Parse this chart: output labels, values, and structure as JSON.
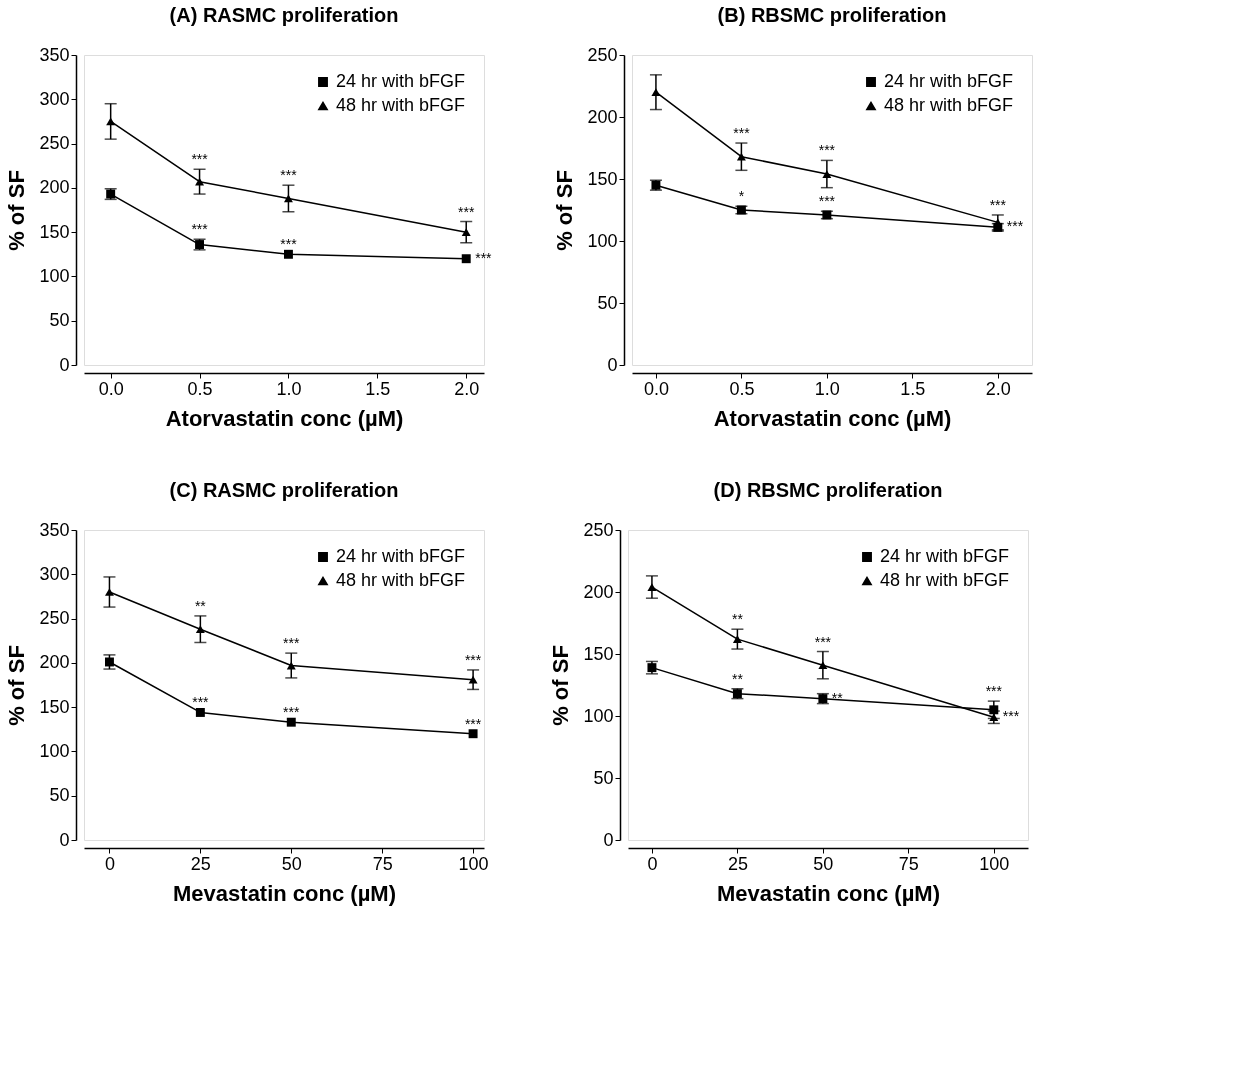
{
  "chart_data": [
    {
      "type": "line",
      "title": "(A) RASMC proliferation",
      "xlabel": "Atorvastatin conc (µM)",
      "ylabel": "% of SF",
      "x": [
        0,
        0.5,
        1,
        2
      ],
      "xlim": [
        -0.15,
        2.1
      ],
      "ylim": [
        0,
        350
      ],
      "xticks": [
        {
          "value": 0,
          "label": "0.0"
        },
        {
          "value": 0.5,
          "label": "0.5"
        },
        {
          "value": 1,
          "label": "1.0"
        },
        {
          "value": 1.5,
          "label": "1.5"
        },
        {
          "value": 2,
          "label": "2.0"
        }
      ],
      "yticks": [
        0,
        50,
        100,
        150,
        200,
        250,
        300,
        350
      ],
      "grid": false,
      "legend": "top right",
      "series": [
        {
          "name": "24 hr with bFGF",
          "color": "#000000",
          "marker": "square",
          "values": [
            193,
            136,
            125,
            120
          ],
          "errors": [
            6,
            6,
            null,
            null
          ]
        },
        {
          "name": "48 hr with bFGF",
          "color": "#000000",
          "marker": "triangle",
          "values": [
            275,
            207,
            188,
            150
          ],
          "errors": [
            20,
            14,
            15,
            12
          ]
        }
      ],
      "annotations": [
        {
          "text": "***",
          "x": 0.5,
          "y": 207
        },
        {
          "text": "***",
          "x": 0.5,
          "y": 136
        },
        {
          "text": "***",
          "x": 1,
          "y": 188
        },
        {
          "text": "***",
          "x": 1,
          "y": 125
        },
        {
          "text": "***",
          "x": 2,
          "y": 150
        },
        {
          "text": "***",
          "x": 2,
          "y": 120
        }
      ]
    },
    {
      "type": "line",
      "title": "(B) RBSMC proliferation",
      "xlabel": "Atorvastatin conc (µM)",
      "ylabel": "% of SF",
      "x": [
        0,
        0.5,
        1,
        2
      ],
      "xlim": [
        -0.14,
        2.2
      ],
      "ylim": [
        0,
        250
      ],
      "xticks": [
        {
          "value": 0,
          "label": "0.0"
        },
        {
          "value": 0.5,
          "label": "0.5"
        },
        {
          "value": 1,
          "label": "1.0"
        },
        {
          "value": 1.5,
          "label": "1.5"
        },
        {
          "value": 2,
          "label": "2.0"
        }
      ],
      "yticks": [
        0,
        50,
        100,
        150,
        200,
        250
      ],
      "grid": false,
      "legend": "top right",
      "series": [
        {
          "name": "24 hr with bFGF",
          "color": "#000000",
          "marker": "square",
          "values": [
            145,
            125,
            121,
            111
          ],
          "errors": [
            4,
            3,
            3,
            3
          ]
        },
        {
          "name": "48 hr with bFGF",
          "color": "#000000",
          "marker": "triangle",
          "values": [
            220,
            168,
            154,
            115
          ],
          "errors": [
            14,
            11,
            11,
            6
          ]
        }
      ],
      "annotations": [
        {
          "text": "***",
          "x": 0.5,
          "y": 168
        },
        {
          "text": "*",
          "x": 0.5,
          "y": 125
        },
        {
          "text": "***",
          "x": 1,
          "y": 154
        },
        {
          "text": "***",
          "x": 1,
          "y": 121
        },
        {
          "text": "***",
          "x": 2,
          "y": 115
        },
        {
          "text": "***",
          "x": 2,
          "y": 111
        }
      ]
    },
    {
      "type": "line",
      "title": "(C) RASMC proliferation",
      "xlabel": "Mevastatin conc (µM)",
      "ylabel": "% of SF",
      "x": [
        0,
        25,
        50,
        100
      ],
      "xlim": [
        -7,
        103
      ],
      "ylim": [
        0,
        350
      ],
      "xticks": [
        0,
        25,
        50,
        75,
        100
      ],
      "yticks": [
        0,
        50,
        100,
        150,
        200,
        250,
        300,
        350
      ],
      "grid": false,
      "legend": "top right",
      "series": [
        {
          "name": "24 hr with bFGF",
          "color": "#000000",
          "marker": "square",
          "values": [
            201,
            144,
            133,
            120
          ],
          "errors": [
            8,
            null,
            null,
            null
          ]
        },
        {
          "name": "48 hr with bFGF",
          "color": "#000000",
          "marker": "triangle",
          "values": [
            280,
            238,
            197,
            181
          ],
          "errors": [
            17,
            15,
            14,
            11
          ]
        }
      ],
      "annotations": [
        {
          "text": "**",
          "x": 25,
          "y": 238
        },
        {
          "text": "***",
          "x": 25,
          "y": 144
        },
        {
          "text": "***",
          "x": 50,
          "y": 197
        },
        {
          "text": "***",
          "x": 50,
          "y": 133
        },
        {
          "text": "***",
          "x": 100,
          "y": 181
        },
        {
          "text": "***",
          "x": 100,
          "y": 120
        }
      ]
    },
    {
      "type": "line",
      "title": "(D) RBSMC proliferation",
      "xlabel": "Mevastatin conc (µM)",
      "ylabel": "% of SF",
      "x": [
        0,
        25,
        50,
        100
      ],
      "xlim": [
        -7,
        110
      ],
      "ylim": [
        0,
        250
      ],
      "xticks": [
        0,
        25,
        50,
        75,
        100
      ],
      "yticks": [
        0,
        50,
        100,
        150,
        200,
        250
      ],
      "grid": false,
      "legend": "top right",
      "series": [
        {
          "name": "24 hr with bFGF",
          "color": "#000000",
          "marker": "square",
          "values": [
            139,
            118,
            114,
            105
          ],
          "errors": [
            5,
            4,
            4,
            7
          ]
        },
        {
          "name": "48 hr with bFGF",
          "color": "#000000",
          "marker": "triangle",
          "values": [
            204,
            162,
            141,
            99
          ],
          "errors": [
            9,
            8,
            11,
            5
          ]
        }
      ],
      "annotations": [
        {
          "text": "**",
          "x": 25,
          "y": 162
        },
        {
          "text": "**",
          "x": 25,
          "y": 118
        },
        {
          "text": "***",
          "x": 50,
          "y": 141
        },
        {
          "text": "**",
          "x": 50,
          "y": 114
        },
        {
          "text": "***",
          "x": 100,
          "y": 105
        },
        {
          "text": "***",
          "x": 100,
          "y": 99
        }
      ]
    }
  ]
}
